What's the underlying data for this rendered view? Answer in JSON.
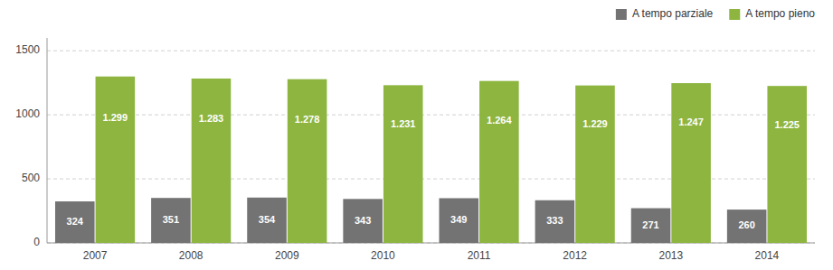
{
  "chart_data": {
    "type": "bar",
    "categories": [
      "2007",
      "2008",
      "2009",
      "2010",
      "2011",
      "2012",
      "2013",
      "2014"
    ],
    "series": [
      {
        "name": "A tempo parziale",
        "color": "#737373",
        "values": [
          324,
          351,
          354,
          343,
          349,
          333,
          271,
          260
        ]
      },
      {
        "name": "A tempo pieno",
        "color": "#8db540",
        "values": [
          1299,
          1283,
          1278,
          1231,
          1264,
          1229,
          1247,
          1225
        ],
        "value_labels": [
          "1.299",
          "1.283",
          "1.278",
          "1.231",
          "1.264",
          "1.229",
          "1.247",
          "1.225"
        ]
      }
    ],
    "ylim": [
      0,
      1600
    ],
    "yticks": [
      0,
      500,
      1000,
      1500
    ],
    "grid": true,
    "legend": "upper right",
    "data_labels": true
  }
}
